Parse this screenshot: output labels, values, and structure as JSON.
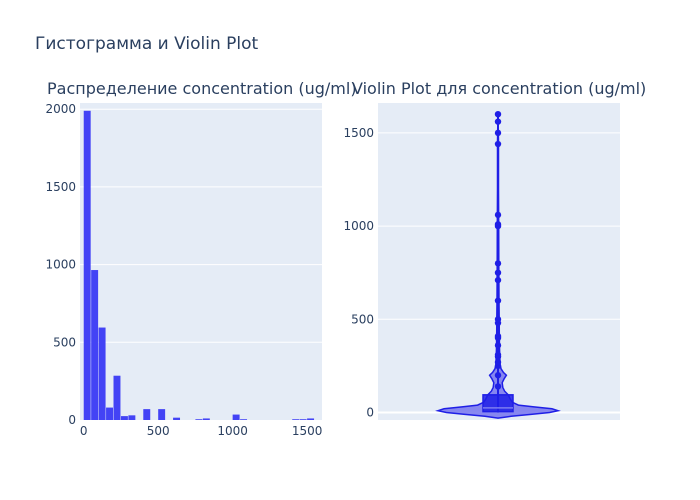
{
  "figure": {
    "title": "Гистограмма и Violin Plot"
  },
  "colors": {
    "plot_bg": "#e5ecf6",
    "grid": "#ffffff",
    "bar": "#4343f5",
    "violin_line": "#1f1fe6",
    "violin_fill": "#7b7bf0",
    "text": "#2a3f5f"
  },
  "chart_data": [
    {
      "type": "bar",
      "title": "Распределение concentration (ug/ml)",
      "xlabel": "",
      "ylabel": "",
      "bin_width": 50,
      "bins": [
        {
          "x0": 0,
          "x1": 50,
          "count": 1990
        },
        {
          "x0": 50,
          "x1": 100,
          "count": 965
        },
        {
          "x0": 100,
          "x1": 150,
          "count": 595
        },
        {
          "x0": 150,
          "x1": 200,
          "count": 80
        },
        {
          "x0": 200,
          "x1": 250,
          "count": 285
        },
        {
          "x0": 250,
          "x1": 300,
          "count": 25
        },
        {
          "x0": 300,
          "x1": 350,
          "count": 30
        },
        {
          "x0": 350,
          "x1": 400,
          "count": 0
        },
        {
          "x0": 400,
          "x1": 450,
          "count": 70
        },
        {
          "x0": 450,
          "x1": 500,
          "count": 0
        },
        {
          "x0": 500,
          "x1": 550,
          "count": 70
        },
        {
          "x0": 550,
          "x1": 600,
          "count": 0
        },
        {
          "x0": 600,
          "x1": 650,
          "count": 15
        },
        {
          "x0": 650,
          "x1": 700,
          "count": 0
        },
        {
          "x0": 700,
          "x1": 750,
          "count": 0
        },
        {
          "x0": 750,
          "x1": 800,
          "count": 5
        },
        {
          "x0": 800,
          "x1": 850,
          "count": 10
        },
        {
          "x0": 850,
          "x1": 900,
          "count": 0
        },
        {
          "x0": 900,
          "x1": 950,
          "count": 0
        },
        {
          "x0": 950,
          "x1": 1000,
          "count": 0
        },
        {
          "x0": 1000,
          "x1": 1050,
          "count": 35
        },
        {
          "x0": 1050,
          "x1": 1100,
          "count": 5
        },
        {
          "x0": 1100,
          "x1": 1150,
          "count": 0
        },
        {
          "x0": 1150,
          "x1": 1200,
          "count": 0
        },
        {
          "x0": 1200,
          "x1": 1250,
          "count": 0
        },
        {
          "x0": 1250,
          "x1": 1300,
          "count": 0
        },
        {
          "x0": 1300,
          "x1": 1350,
          "count": 0
        },
        {
          "x0": 1350,
          "x1": 1400,
          "count": 0
        },
        {
          "x0": 1400,
          "x1": 1450,
          "count": 5
        },
        {
          "x0": 1450,
          "x1": 1500,
          "count": 5
        },
        {
          "x0": 1500,
          "x1": 1550,
          "count": 10
        }
      ],
      "xlim": [
        -25,
        1600
      ],
      "ylim": [
        0,
        2040
      ],
      "xticks": [
        0,
        500,
        1000,
        1500
      ],
      "yticks": [
        0,
        500,
        1000,
        1500,
        2000
      ]
    },
    {
      "type": "violin",
      "title": "Violin Plot для concentration (ug/ml)",
      "xlabel": "",
      "ylabel": "",
      "ylim": [
        -40,
        1660
      ],
      "yticks": [
        0,
        500,
        1000,
        1500
      ],
      "box": {
        "q1": 5,
        "median": 25,
        "q3": 95,
        "whisker_low": 0,
        "whisker_high": 1610
      },
      "outliers": [
        140,
        200,
        250,
        270,
        300,
        310,
        360,
        400,
        410,
        480,
        500,
        600,
        710,
        750,
        800,
        1000,
        1010,
        1060,
        1440,
        1500,
        1560,
        1600
      ],
      "density": [
        {
          "y": -30,
          "w": 0.0
        },
        {
          "y": -20,
          "w": 0.22
        },
        {
          "y": -10,
          "w": 0.55
        },
        {
          "y": 0,
          "w": 0.86
        },
        {
          "y": 10,
          "w": 1.0
        },
        {
          "y": 20,
          "w": 0.9
        },
        {
          "y": 30,
          "w": 0.6
        },
        {
          "y": 40,
          "w": 0.34
        },
        {
          "y": 55,
          "w": 0.24
        },
        {
          "y": 75,
          "w": 0.2
        },
        {
          "y": 95,
          "w": 0.17
        },
        {
          "y": 115,
          "w": 0.11
        },
        {
          "y": 135,
          "w": 0.08
        },
        {
          "y": 160,
          "w": 0.07
        },
        {
          "y": 180,
          "w": 0.1
        },
        {
          "y": 200,
          "w": 0.14
        },
        {
          "y": 215,
          "w": 0.09
        },
        {
          "y": 235,
          "w": 0.05
        },
        {
          "y": 260,
          "w": 0.035
        },
        {
          "y": 300,
          "w": 0.03
        },
        {
          "y": 350,
          "w": 0.025
        },
        {
          "y": 420,
          "w": 0.022
        },
        {
          "y": 500,
          "w": 0.02
        },
        {
          "y": 600,
          "w": 0.016
        },
        {
          "y": 800,
          "w": 0.013
        },
        {
          "y": 1000,
          "w": 0.012
        },
        {
          "y": 1200,
          "w": 0.009
        },
        {
          "y": 1450,
          "w": 0.008
        },
        {
          "y": 1610,
          "w": 0.0
        }
      ]
    }
  ]
}
